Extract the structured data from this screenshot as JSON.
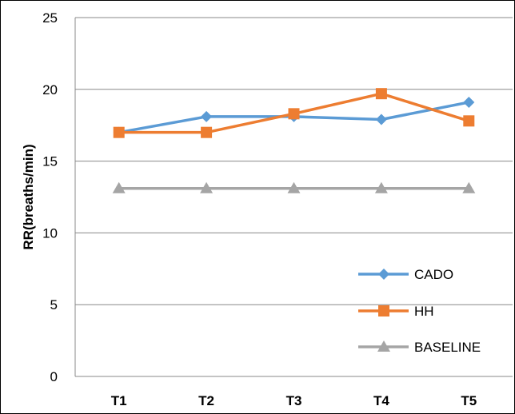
{
  "chart_data": {
    "type": "line",
    "title": "",
    "xlabel": "",
    "ylabel": "RR(breaths/min)",
    "categories": [
      "T1",
      "T2",
      "T3",
      "T4",
      "T5"
    ],
    "ylim": [
      0,
      25
    ],
    "yticks": [
      0,
      5,
      10,
      15,
      20,
      25
    ],
    "grid": "horizontal",
    "legend_position": "right",
    "series": [
      {
        "name": "CADO",
        "values": [
          17.0,
          18.1,
          18.1,
          17.9,
          19.1
        ],
        "color": "#5B9BD5",
        "marker": "diamond"
      },
      {
        "name": "HH",
        "values": [
          17.0,
          17.0,
          18.3,
          19.7,
          17.8
        ],
        "color": "#ED7D31",
        "marker": "square"
      },
      {
        "name": "BASELINE",
        "values": [
          13.1,
          13.1,
          13.1,
          13.1,
          13.1
        ],
        "color": "#A5A5A5",
        "marker": "triangle"
      }
    ]
  }
}
